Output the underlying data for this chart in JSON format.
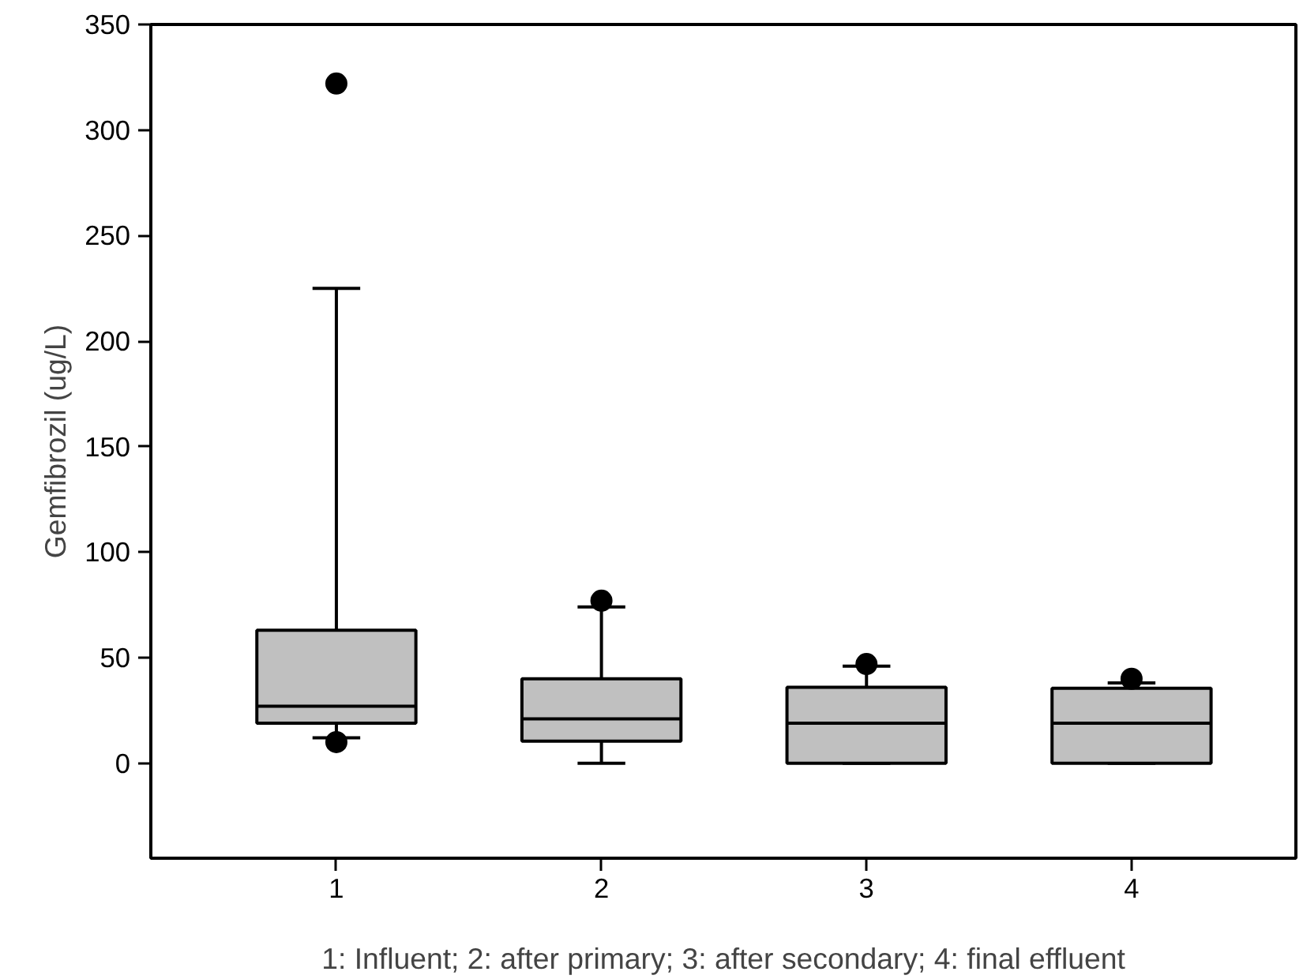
{
  "chart_data": {
    "type": "box",
    "xlabel": "1: Influent; 2: after primary; 3: after secondary; 4: final effluent",
    "ylabel": "Gemfibrozil (ug/L)",
    "categories": [
      "1",
      "2",
      "3",
      "4"
    ],
    "boxes": [
      {
        "low": 12,
        "q1": 19,
        "median": 27,
        "q3": 63,
        "high": 225,
        "outliers": [
          322,
          10
        ]
      },
      {
        "low": 0,
        "q1": 10.5,
        "median": 21,
        "q3": 40,
        "high": 74,
        "outliers": [
          77
        ]
      },
      {
        "low": 0,
        "q1": 0,
        "median": 19,
        "q3": 36,
        "high": 46,
        "outliers": [
          47
        ]
      },
      {
        "low": 0,
        "q1": 0,
        "median": 19,
        "q3": 35.5,
        "high": 38,
        "outliers": [
          40
        ]
      }
    ],
    "color": "#c0c0c0",
    "ylim": [
      -45,
      350
    ],
    "yticks": [
      0,
      50,
      100,
      150,
      200,
      250,
      300,
      350
    ],
    "grid": false
  }
}
